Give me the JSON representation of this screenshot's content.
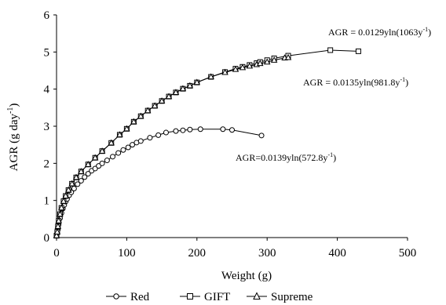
{
  "chart_data": {
    "type": "line",
    "xlabel": "Weight (g)",
    "ylabel": "AGR (g day",
    "ylabel_sup": "-1",
    "ylabel_close": ")",
    "xlim": [
      0,
      500
    ],
    "ylim": [
      0,
      6
    ],
    "xticks": [
      0,
      100,
      200,
      300,
      400,
      500
    ],
    "yticks": [
      0,
      1,
      2,
      3,
      4,
      5,
      6
    ],
    "grid": false,
    "legend_position": "bottom",
    "legend": [
      {
        "label": "Red",
        "marker": "circle"
      },
      {
        "label": "GIFT",
        "marker": "square"
      },
      {
        "label": "Supreme",
        "marker": "triangle"
      }
    ],
    "annotations": [
      {
        "series": "GIFT",
        "base": "AGR = 0.0129yln(1063y",
        "sup": "-1",
        "close": ")"
      },
      {
        "series": "Supreme",
        "base": "AGR = 0.0135yln(981.8y",
        "sup": "-1",
        "close": ")"
      },
      {
        "series": "Red",
        "base": "AGR=0.0139yln(572.8y",
        "sup": "-1",
        "close": ")"
      }
    ],
    "series": [
      {
        "name": "Red",
        "marker": "circle",
        "x": [
          0,
          1,
          2,
          3,
          5,
          7,
          9,
          11,
          13,
          15,
          18,
          21,
          25,
          30,
          35,
          40,
          45,
          50,
          55,
          60,
          65,
          72,
          80,
          88,
          95,
          102,
          108,
          114,
          120,
          133,
          145,
          156,
          170,
          180,
          190,
          205,
          237,
          250,
          292
        ],
        "y": [
          0.05,
          0.12,
          0.22,
          0.35,
          0.52,
          0.66,
          0.78,
          0.88,
          0.97,
          1.04,
          1.14,
          1.22,
          1.32,
          1.44,
          1.53,
          1.63,
          1.72,
          1.8,
          1.86,
          1.93,
          2.0,
          2.08,
          2.18,
          2.28,
          2.36,
          2.43,
          2.5,
          2.56,
          2.6,
          2.69,
          2.76,
          2.83,
          2.87,
          2.89,
          2.91,
          2.92,
          2.92,
          2.9,
          2.75
        ]
      },
      {
        "name": "GIFT",
        "marker": "square",
        "x": [
          0,
          1,
          2,
          3,
          5,
          7,
          10,
          13,
          17,
          22,
          28,
          35,
          45,
          55,
          65,
          78,
          90,
          100,
          110,
          120,
          130,
          140,
          150,
          160,
          170,
          180,
          190,
          200,
          220,
          240,
          255,
          265,
          275,
          285,
          290,
          300,
          310,
          330,
          390,
          430
        ],
        "y": [
          0.05,
          0.15,
          0.3,
          0.45,
          0.63,
          0.8,
          0.98,
          1.12,
          1.28,
          1.45,
          1.62,
          1.78,
          1.97,
          2.15,
          2.33,
          2.55,
          2.77,
          2.93,
          3.12,
          3.27,
          3.42,
          3.55,
          3.68,
          3.8,
          3.91,
          4.01,
          4.09,
          4.18,
          4.33,
          4.46,
          4.55,
          4.6,
          4.65,
          4.7,
          4.73,
          4.78,
          4.83,
          4.9,
          5.05,
          5.02
        ]
      },
      {
        "name": "Supreme",
        "marker": "triangle",
        "x": [
          0,
          1,
          2,
          3,
          5,
          7,
          10,
          13,
          17,
          22,
          28,
          35,
          45,
          55,
          65,
          78,
          90,
          100,
          110,
          120,
          130,
          140,
          150,
          160,
          170,
          180,
          190,
          200,
          220,
          240,
          255,
          265,
          275,
          285,
          290,
          300,
          310,
          325,
          330
        ],
        "y": [
          0.05,
          0.15,
          0.3,
          0.45,
          0.63,
          0.8,
          0.98,
          1.12,
          1.28,
          1.45,
          1.62,
          1.78,
          1.97,
          2.15,
          2.33,
          2.55,
          2.77,
          2.93,
          3.12,
          3.27,
          3.42,
          3.55,
          3.68,
          3.8,
          3.91,
          4.01,
          4.09,
          4.18,
          4.33,
          4.45,
          4.53,
          4.58,
          4.62,
          4.66,
          4.69,
          4.73,
          4.78,
          4.84,
          4.85
        ]
      }
    ]
  }
}
